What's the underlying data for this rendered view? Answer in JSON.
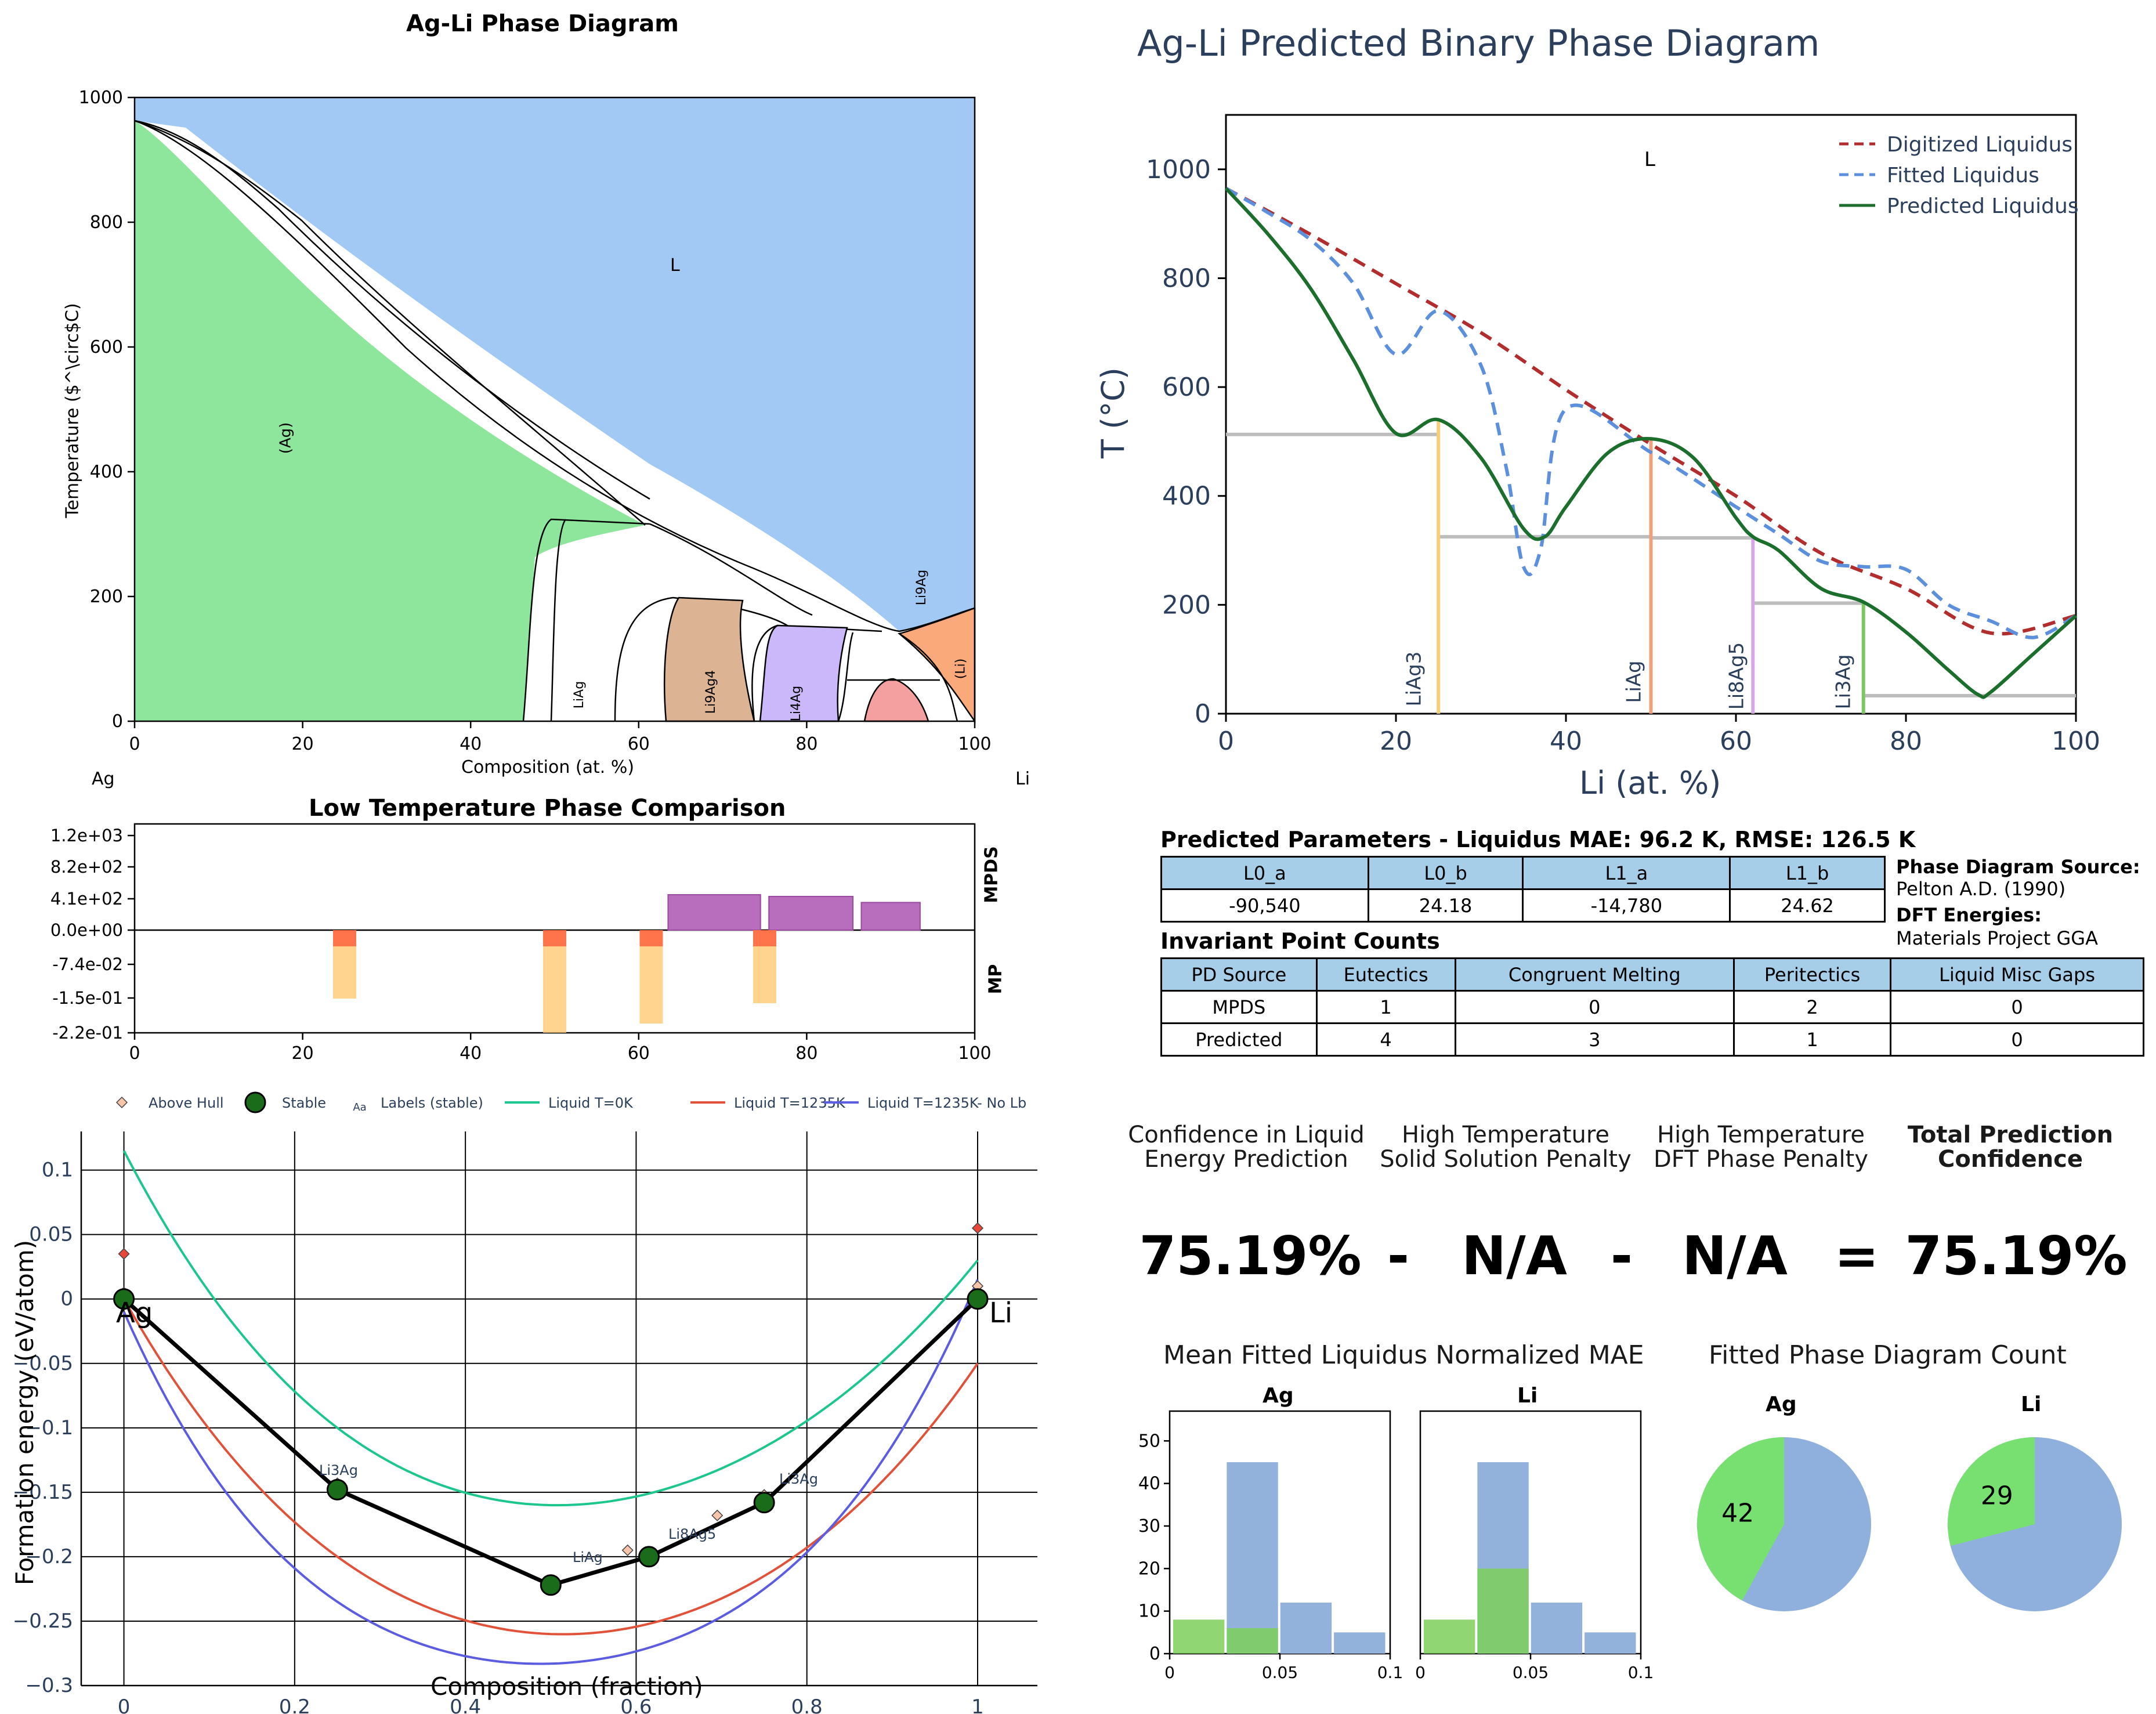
{
  "colors": {
    "ag_solid": "#8ee59c",
    "liquid": "#a2c9f3",
    "li9ag4": "#dcb494",
    "li4ag": "#cbb8fb",
    "li_solid": "#f9a97a",
    "pink": "#f5a0a0",
    "navy": "#2b3f5d",
    "digitized": "#b22e2e",
    "fitted": "#5c8fdc",
    "predicted": "#1c6e2c",
    "mp_orange": "#ffcc7a",
    "mp_red": "#ff5b3a",
    "mpds_purple": "#b86dbd",
    "teal": "#1ec68f",
    "redline": "#e0523a",
    "blueline": "#5c5ce0",
    "hist_blue": "#92b2dc",
    "hist_green": "#7ccf5a",
    "pie_green": "#78e070",
    "pie_blue": "#8fb0dd"
  },
  "phase_diagram": {
    "title": "Ag-Li Phase Diagram",
    "xlabel": "Composition (at. %)",
    "ylabel": "Temperature ($^\\circ$C)",
    "left_element": "Ag",
    "right_element": "Li",
    "x_ticks": [
      "0",
      "20",
      "40",
      "60",
      "80",
      "100"
    ],
    "y_ticks": [
      "0",
      "200",
      "400",
      "600",
      "800",
      "1000"
    ],
    "labels": {
      "liquid": "L",
      "ag": "(Ag)",
      "liag": "LiAg",
      "li9ag4": "Li9Ag4",
      "li4ag": "Li4Ag",
      "li9ag": "Li9Ag",
      "li": "(Li)"
    }
  },
  "low_temp": {
    "title": "Low Temperature Phase Comparison",
    "y_ticks_top": [
      "1.2e+03",
      "8.2e+02",
      "4.1e+02",
      "0.0e+00"
    ],
    "y_ticks_bottom": [
      "-7.4e-02",
      "-1.5e-01",
      "-2.2e-01"
    ],
    "x_ticks": [
      "0",
      "20",
      "40",
      "60",
      "80",
      "100"
    ],
    "label_top": "MPDS",
    "label_bottom": "MP"
  },
  "hull": {
    "legend": [
      "Above Hull",
      "Stable",
      "Labels (stable)",
      "Liquid T=0K",
      "Liquid T=1235K",
      "Liquid T=1235K- No Lb"
    ],
    "legend_sample_text": "Aa",
    "xlabel": "Composition (fraction)",
    "ylabel": "Formation energy (eV/atom)",
    "x_ticks": [
      "0",
      "0.2",
      "0.4",
      "0.6",
      "0.8",
      "1"
    ],
    "y_ticks": [
      "0.1",
      "0.05",
      "0",
      "−0.05",
      "−0.1",
      "−0.15",
      "−0.2",
      "−0.25",
      "−0.3"
    ],
    "end_left": "Ag",
    "end_right": "Li",
    "labels": {
      "li3ag": "Li3Ag",
      "li3ag_right": "Li3Ag",
      "liag": "LiAg",
      "li8ag5": "Li8Ag5"
    }
  },
  "predicted": {
    "title": "Ag-Li Predicted Binary Phase Diagram",
    "xlabel": "Li (at. %)",
    "ylabel": "T (°C)",
    "x_ticks": [
      "0",
      "20",
      "40",
      "60",
      "80",
      "100"
    ],
    "y_ticks": [
      "0",
      "200",
      "400",
      "600",
      "800",
      "1000"
    ],
    "liquid_label": "L",
    "legend": [
      "Digitized Liquidus",
      "Fitted Liquidus",
      "Predicted Liquidus"
    ],
    "compounds": [
      "LiAg3",
      "LiAg",
      "Li8Ag5",
      "Li3Ag"
    ]
  },
  "params": {
    "title": "Predicted Parameters - Liquidus MAE: 96.2 K, RMSE: 126.5 K",
    "headers": [
      "L0_a",
      "L0_b",
      "L1_a",
      "L1_b"
    ],
    "values": [
      "-90,540",
      "24.18",
      "-14,780",
      "24.62"
    ],
    "source_label": "Phase Diagram Source:",
    "source_value": "Pelton A.D. (1990)",
    "dft_label": "DFT Energies:",
    "dft_value": "Materials Project GGA"
  },
  "invariants": {
    "title": "Invariant Point Counts",
    "headers": [
      "PD Source",
      "Eutectics",
      "Congruent Melting",
      "Peritectics",
      "Liquid Misc Gaps"
    ],
    "rows": [
      [
        "MPDS",
        "1",
        "0",
        "2",
        "0"
      ],
      [
        "Predicted",
        "4",
        "3",
        "1",
        "0"
      ]
    ]
  },
  "confidence": {
    "h1": "Confidence in Liquid\nEnergy Prediction",
    "h2": "High Temperature\nSolid Solution Penalty",
    "h3": "High Temperature\nDFT Phase Penalty",
    "h4": "Total Prediction\nConfidence",
    "v1": "75.19%",
    "op1": "-",
    "v2": "N/A",
    "op2": "-",
    "v3": "N/A",
    "op3": "=",
    "v4": "75.19%"
  },
  "mae_hist": {
    "title": "Mean Fitted Liquidus Normalized MAE",
    "y_ticks": [
      "0",
      "10",
      "20",
      "30",
      "40",
      "50"
    ],
    "x_ticks_ag": [
      "0",
      "0.05",
      "0.1"
    ],
    "x_ticks_li": [
      "0",
      "0.05",
      "0.1"
    ],
    "panels": [
      {
        "name": "Ag",
        "blue": [
          0,
          45,
          12,
          5
        ],
        "green": [
          8,
          6,
          0,
          0
        ]
      },
      {
        "name": "Li",
        "blue": [
          0,
          45,
          12,
          5
        ],
        "green": [
          8,
          20,
          0,
          0
        ]
      }
    ]
  },
  "pies": {
    "title": "Fitted Phase Diagram Count",
    "items": [
      {
        "name": "Ag",
        "value": "42",
        "green_fraction": 0.42
      },
      {
        "name": "Li",
        "value": "29",
        "green_fraction": 0.29
      }
    ]
  },
  "chart_data": [
    {
      "type": "area",
      "title": "Ag-Li Phase Diagram",
      "xlabel": "Composition (at. %)",
      "ylabel": "Temperature ($^\\circ$C)",
      "xlim": [
        0,
        100
      ],
      "ylim": [
        0,
        1000
      ],
      "liquidus_x": [
        0,
        10,
        20,
        30,
        40,
        50,
        60,
        70,
        80,
        90,
        100
      ],
      "liquidus_y": [
        960,
        880,
        790,
        690,
        590,
        490,
        380,
        270,
        200,
        145,
        180
      ]
    },
    {
      "type": "bar",
      "title": "Low Temperature Phase Comparison",
      "series": [
        {
          "name": "MPDS",
          "x": [
            63.5,
            75.5,
            86.5
          ],
          "values": [
            410,
            390,
            320
          ]
        },
        {
          "name": "MP",
          "x": [
            25,
            50,
            61.5,
            75
          ],
          "values": [
            -0.148,
            -0.222,
            -0.202,
            -0.158
          ]
        }
      ]
    },
    {
      "type": "scatter",
      "xlabel": "Composition (fraction)",
      "ylabel": "Formation energy (eV/atom)",
      "xlim": [
        -0.05,
        1.07
      ],
      "ylim": [
        -0.3,
        0.13
      ],
      "series": [
        {
          "name": "Stable",
          "x": [
            0,
            0.25,
            0.5,
            0.615,
            0.75,
            1
          ],
          "values": [
            0,
            -0.148,
            -0.222,
            -0.2,
            -0.158,
            0
          ]
        },
        {
          "name": "Above Hull",
          "x": [
            0,
            0,
            0.25,
            0.59,
            0.695,
            0.75,
            1,
            1,
            1
          ],
          "values": [
            0.035,
            0.005,
            -0.143,
            -0.195,
            -0.168,
            -0.152,
            0.055,
            0.01,
            0.003
          ]
        },
        {
          "name": "Liquid T=0K",
          "x": [
            0,
            0.25,
            0.5,
            0.75,
            1
          ],
          "values": [
            0.115,
            -0.1,
            -0.16,
            -0.115,
            0.03
          ]
        },
        {
          "name": "Liquid T=1235K",
          "x": [
            0,
            0.25,
            0.5,
            0.75,
            1
          ],
          "values": [
            0.0,
            -0.2,
            -0.26,
            -0.215,
            -0.05
          ]
        },
        {
          "name": "Liquid T=1235K- No Lb",
          "x": [
            0,
            0.25,
            0.5,
            0.75,
            1
          ],
          "values": [
            -0.01,
            -0.235,
            -0.283,
            -0.225,
            0.015
          ]
        }
      ]
    },
    {
      "type": "line",
      "title": "Ag-Li Predicted Binary Phase Diagram",
      "xlabel": "Li (at. %)",
      "ylabel": "T (°C)",
      "xlim": [
        0,
        100
      ],
      "ylim": [
        0,
        1100
      ],
      "series": [
        {
          "name": "Digitized Liquidus",
          "x": [
            0,
            10,
            20,
            30,
            40,
            50,
            60,
            70,
            80,
            90,
            100
          ],
          "values": [
            965,
            880,
            790,
            700,
            595,
            495,
            400,
            295,
            230,
            148,
            180
          ]
        },
        {
          "name": "Fitted Liquidus",
          "x": [
            0,
            5,
            10,
            15,
            20,
            25,
            30,
            33,
            35,
            37,
            40,
            50,
            60,
            65,
            70,
            75,
            80,
            85,
            90,
            95,
            100
          ],
          "values": [
            965,
            920,
            870,
            790,
            660,
            740,
            640,
            450,
            270,
            300,
            560,
            480,
            380,
            330,
            280,
            270,
            265,
            200,
            170,
            140,
            180
          ]
        },
        {
          "name": "Predicted Liquidus",
          "x": [
            0,
            5,
            10,
            15,
            20,
            25,
            30,
            35,
            37.5,
            40,
            45,
            50,
            55,
            60,
            62,
            65,
            70,
            75,
            80,
            85,
            88.5,
            90,
            95,
            100
          ],
          "values": [
            965,
            880,
            780,
            650,
            515,
            540,
            470,
            340,
            325,
            380,
            480,
            505,
            470,
            360,
            325,
            300,
            230,
            205,
            150,
            80,
            35,
            40,
            110,
            180
          ]
        }
      ],
      "compound_lines": [
        {
          "name": "LiAg3",
          "x": 25,
          "top": 538
        },
        {
          "name": "LiAg",
          "x": 50,
          "top": 508
        },
        {
          "name": "Li8Ag5",
          "x": 62,
          "top": 325
        },
        {
          "name": "Li3Ag",
          "x": 75,
          "top": 205
        }
      ]
    },
    {
      "type": "bar",
      "title": "Mean Fitted Liquidus Normalized MAE",
      "categories": [
        "0-0.025",
        "0.025-0.05",
        "0.05-0.075",
        "0.075-0.1"
      ],
      "series": [
        {
          "name": "Ag",
          "values": [
            8,
            45,
            12,
            5
          ]
        },
        {
          "name": "Li",
          "values": [
            8,
            45,
            12,
            5
          ]
        }
      ]
    },
    {
      "type": "pie",
      "title": "Fitted Phase Diagram Count",
      "series": [
        {
          "name": "Ag",
          "values": [
            42
          ]
        },
        {
          "name": "Li",
          "values": [
            29
          ]
        }
      ]
    }
  ]
}
